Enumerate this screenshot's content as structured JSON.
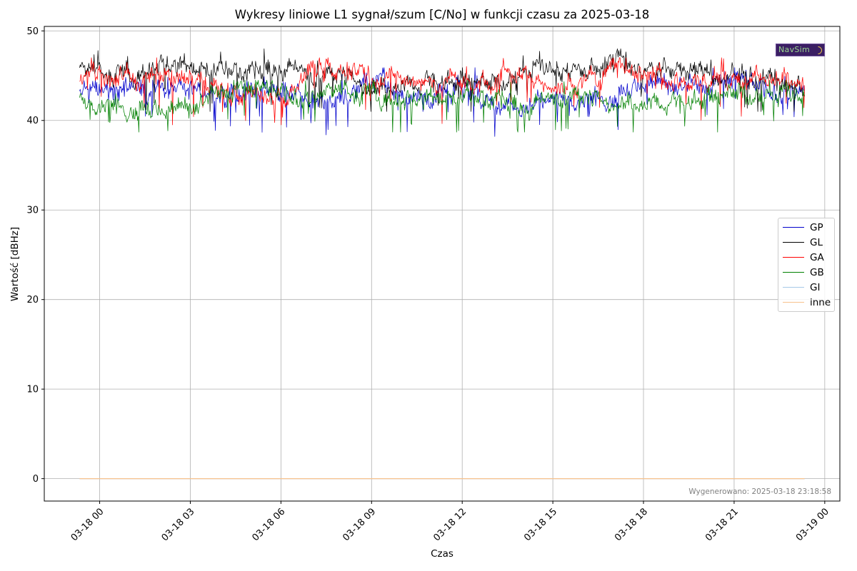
{
  "chart_data": {
    "type": "line",
    "title": "Wykresy liniowe L1 sygnał/szum [C/No] w funkcji czasu za 2025-03-18",
    "xlabel": "Czas",
    "ylabel": "Wartość [dBHz]",
    "x_range": [
      "2025-03-17 23:20",
      "2025-03-18 23:20"
    ],
    "xlim": [
      "2025-03-17 22:10",
      "2025-03-19 00:30"
    ],
    "ylim": [
      -2.5,
      50.5
    ],
    "x_ticks": [
      "03-18 00",
      "03-18 03",
      "03-18 06",
      "03-18 09",
      "03-18 12",
      "03-18 15",
      "03-18 18",
      "03-18 21",
      "03-19 00"
    ],
    "y_ticks": [
      "0",
      "10",
      "20",
      "30",
      "40",
      "50"
    ],
    "grid": true,
    "legend_position": "right",
    "series": [
      {
        "name": "GP",
        "color": "#0000cc",
        "range": [
          38.2,
          45.9
        ],
        "x": [
          "2025-03-17 23:20",
          "2025-03-18 01:00",
          "2025-03-18 02:00",
          "2025-03-18 03:00",
          "2025-03-18 04:00",
          "2025-03-18 05:00",
          "2025-03-18 06:00",
          "2025-03-18 07:00",
          "2025-03-18 08:00",
          "2025-03-18 09:00",
          "2025-03-18 10:00",
          "2025-03-18 11:00",
          "2025-03-18 12:00",
          "2025-03-18 13:00",
          "2025-03-18 14:00",
          "2025-03-18 15:00",
          "2025-03-18 16:00",
          "2025-03-18 17:00",
          "2025-03-18 18:00",
          "2025-03-18 19:00",
          "2025-03-18 20:00",
          "2025-03-18 21:00",
          "2025-03-18 22:00",
          "2025-03-18 23:20"
        ],
        "values": [
          42.8,
          43.8,
          43.0,
          43.3,
          42.8,
          42.9,
          44.0,
          41.5,
          42.5,
          44.5,
          43.5,
          42.5,
          43.2,
          42.0,
          41.5,
          43.0,
          42.5,
          42.8,
          44.5,
          44.0,
          43.5,
          44.5,
          43.5,
          43.5
        ]
      },
      {
        "name": "GL",
        "color": "#000000",
        "range": [
          41.0,
          48.0
        ],
        "x": [
          "2025-03-17 23:20",
          "2025-03-18 01:00",
          "2025-03-18 02:00",
          "2025-03-18 03:00",
          "2025-03-18 04:00",
          "2025-03-18 05:00",
          "2025-03-18 06:00",
          "2025-03-18 07:00",
          "2025-03-18 08:00",
          "2025-03-18 09:00",
          "2025-03-18 10:00",
          "2025-03-18 11:00",
          "2025-03-18 12:00",
          "2025-03-18 13:00",
          "2025-03-18 14:00",
          "2025-03-18 15:00",
          "2025-03-18 16:00",
          "2025-03-18 17:00",
          "2025-03-18 18:00",
          "2025-03-18 19:00",
          "2025-03-18 20:00",
          "2025-03-18 21:00",
          "2025-03-18 22:00",
          "2025-03-18 23:20"
        ],
        "values": [
          45.5,
          45.0,
          46.5,
          46.0,
          46.0,
          45.5,
          46.5,
          44.5,
          45.5,
          43.5,
          43.5,
          44.5,
          44.5,
          44.0,
          45.5,
          46.0,
          45.5,
          46.5,
          45.5,
          46.0,
          45.0,
          44.5,
          45.0,
          43.5
        ]
      },
      {
        "name": "GA",
        "color": "#ff0000",
        "range": [
          39.5,
          47.0
        ],
        "x": [
          "2025-03-17 23:20",
          "2025-03-18 01:00",
          "2025-03-18 02:00",
          "2025-03-18 03:00",
          "2025-03-18 04:00",
          "2025-03-18 05:00",
          "2025-03-18 06:00",
          "2025-03-18 07:00",
          "2025-03-18 08:00",
          "2025-03-18 09:00",
          "2025-03-18 10:00",
          "2025-03-18 11:00",
          "2025-03-18 12:00",
          "2025-03-18 13:00",
          "2025-03-18 14:00",
          "2025-03-18 15:00",
          "2025-03-18 16:00",
          "2025-03-18 17:00",
          "2025-03-18 18:00",
          "2025-03-18 19:00",
          "2025-03-18 20:00",
          "2025-03-18 21:00",
          "2025-03-18 22:00",
          "2025-03-18 23:20"
        ],
        "values": [
          45.0,
          44.5,
          44.5,
          44.5,
          43.0,
          43.0,
          42.0,
          45.5,
          46.0,
          44.5,
          44.5,
          44.5,
          44.5,
          44.0,
          45.5,
          44.0,
          44.5,
          46.0,
          45.0,
          44.5,
          44.5,
          44.5,
          45.0,
          44.5
        ]
      },
      {
        "name": "GB",
        "color": "#008000",
        "range": [
          38.7,
          44.5
        ],
        "x": [
          "2025-03-17 23:20",
          "2025-03-18 01:00",
          "2025-03-18 02:00",
          "2025-03-18 03:00",
          "2025-03-18 04:00",
          "2025-03-18 05:00",
          "2025-03-18 06:00",
          "2025-03-18 07:00",
          "2025-03-18 08:00",
          "2025-03-18 09:00",
          "2025-03-18 10:00",
          "2025-03-18 11:00",
          "2025-03-18 12:00",
          "2025-03-18 13:00",
          "2025-03-18 14:00",
          "2025-03-18 15:00",
          "2025-03-18 16:00",
          "2025-03-18 17:00",
          "2025-03-18 18:00",
          "2025-03-18 19:00",
          "2025-03-18 20:00",
          "2025-03-18 21:00",
          "2025-03-18 22:00",
          "2025-03-18 23:20"
        ],
        "values": [
          42.5,
          41.5,
          41.5,
          41.5,
          43.0,
          43.5,
          43.0,
          43.0,
          43.0,
          43.0,
          42.5,
          42.5,
          43.0,
          42.5,
          42.0,
          42.0,
          43.0,
          42.0,
          41.5,
          42.0,
          42.5,
          43.0,
          43.0,
          42.8
        ]
      },
      {
        "name": "GI",
        "color": "#a6c8e8",
        "x": [
          "2025-03-17 23:20",
          "2025-03-18 23:20"
        ],
        "values": [
          0,
          0
        ]
      },
      {
        "name": "inne",
        "color": "#f7c28c",
        "x": [
          "2025-03-17 23:20",
          "2025-03-18 23:20"
        ],
        "values": [
          0,
          0
        ]
      }
    ]
  },
  "footer": {
    "generated": "Wygenerowano: 2025-03-18 23:18:58"
  },
  "logo": {
    "text": "NavSim",
    "colors": {
      "background": "#3b1f63",
      "text": "#9ad68f",
      "accent": "#e9c64b"
    }
  }
}
